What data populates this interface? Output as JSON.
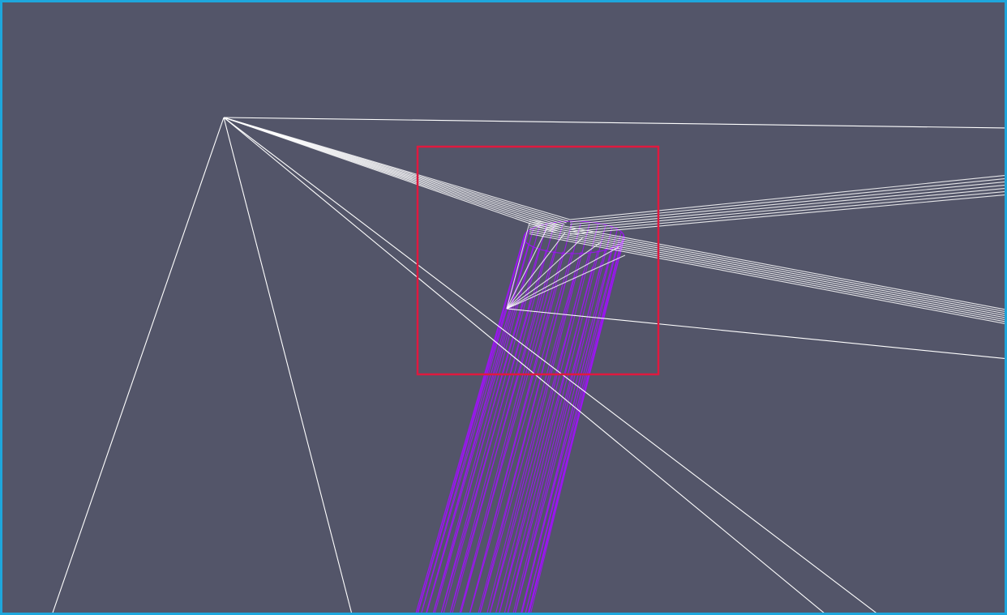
{
  "viewport": {
    "background_color": "#535569",
    "border_color": "#1ea6dc"
  },
  "scene": {
    "wire_color": "#ffffff",
    "cylinder_color": "#9a16f0",
    "highlight_box_color": "#e0193f"
  }
}
